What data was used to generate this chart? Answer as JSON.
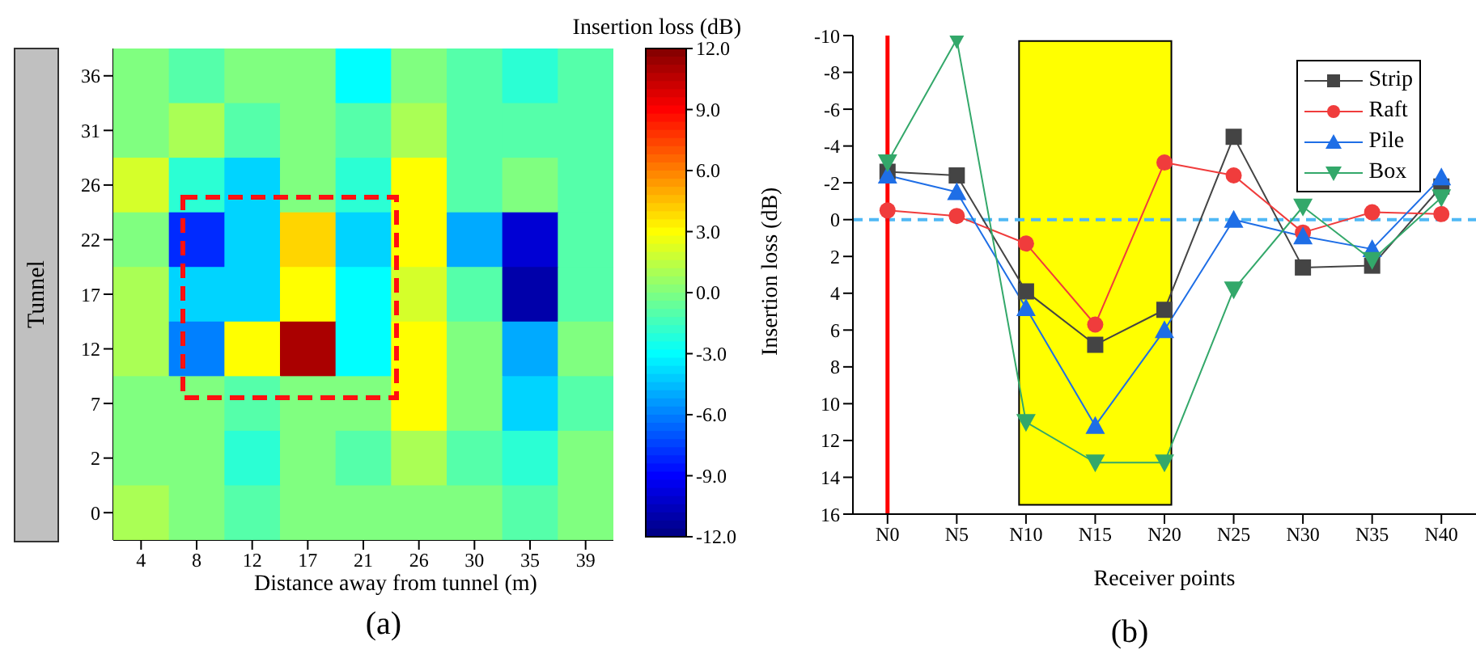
{
  "chart_data": [
    {
      "type": "heatmap",
      "xlabel": "Distance away from tunnel (m)",
      "clabel": "Insertion loss (dB)",
      "categories": [
        "4",
        "8",
        "12",
        "17",
        "21",
        "26",
        "30",
        "35",
        "39"
      ],
      "y_categories": [
        "36",
        "31",
        "26",
        "22",
        "17",
        "12",
        "7",
        "2",
        "0"
      ],
      "cells": [
        [
          0,
          -1,
          0,
          0,
          -3,
          0,
          -1,
          -2,
          -1
        ],
        [
          0,
          1,
          -1,
          0,
          -1,
          1,
          -1,
          -1,
          -1
        ],
        [
          2,
          -2,
          -4,
          0,
          -2,
          3,
          -1,
          0,
          -1
        ],
        [
          0,
          -8,
          -4,
          4,
          -4,
          3,
          -5,
          -10,
          -1
        ],
        [
          1,
          -4,
          -4,
          3,
          -3,
          2,
          -1,
          -11,
          -1
        ],
        [
          1,
          -6,
          3,
          11,
          -3,
          3,
          0,
          -5,
          0
        ],
        [
          0,
          0,
          -1,
          0,
          0,
          3,
          0,
          -4,
          -1
        ],
        [
          0,
          0,
          -2,
          0,
          -1,
          1,
          -1,
          -2,
          0
        ],
        [
          1,
          0,
          -1,
          0,
          0,
          0,
          0,
          -1,
          0
        ]
      ],
      "clim": [
        -12,
        12
      ],
      "cticks": [
        {
          "value": -12,
          "label": "-12.0"
        },
        {
          "value": -9,
          "label": "-9.0"
        },
        {
          "value": -6,
          "label": "-6.0"
        },
        {
          "value": -3,
          "label": "-3.0"
        },
        {
          "value": 0,
          "label": "0.0"
        },
        {
          "value": 3,
          "label": "3.0"
        },
        {
          "value": 6,
          "label": "6.0"
        },
        {
          "value": 9,
          "label": "9.0"
        },
        {
          "value": 12,
          "label": "12.0"
        }
      ],
      "annotations": [
        "Tunnel",
        "(a)"
      ]
    },
    {
      "type": "line",
      "xlabel": "Receiver points",
      "ylabel": "Insertion loss (dB)",
      "categories": [
        "N0",
        "N5",
        "N10",
        "N15",
        "N20",
        "N25",
        "N30",
        "N35",
        "N40"
      ],
      "series": [
        {
          "name": "Strip",
          "color": "#444444",
          "marker": "square",
          "values": [
            -2.6,
            -2.4,
            3.9,
            6.8,
            4.9,
            -4.5,
            2.6,
            2.5,
            -1.8
          ]
        },
        {
          "name": "Raft",
          "color": "#f03c3c",
          "marker": "circle",
          "values": [
            -0.5,
            -0.2,
            1.3,
            5.7,
            -3.1,
            -2.4,
            0.7,
            -0.4,
            -0.3
          ]
        },
        {
          "name": "Pile",
          "color": "#1e6ee6",
          "marker": "triangle",
          "values": [
            -2.4,
            -1.5,
            4.8,
            11.2,
            6.0,
            0.0,
            0.9,
            1.6,
            -2.3
          ]
        },
        {
          "name": "Box",
          "color": "#33a86a",
          "marker": "triangle-down",
          "values": [
            -3.1,
            -9.8,
            11.0,
            13.2,
            13.2,
            3.8,
            -0.7,
            2.2,
            -1.2
          ]
        }
      ],
      "ylim": [
        16,
        -10
      ],
      "yticks": [
        -10,
        -8,
        -6,
        -4,
        -2,
        0,
        2,
        4,
        6,
        8,
        10,
        12,
        14,
        16
      ],
      "legend": "top right",
      "ref_lines": [
        {
          "axis": "y",
          "value": 0,
          "color": "#4fb8f5",
          "line_style": "dashed"
        },
        {
          "axis": "x",
          "value": "N0",
          "color": "#ff0000",
          "line_style": "solid"
        }
      ],
      "bands": [
        {
          "axis": "x",
          "from": "N10",
          "to": "N20",
          "color": "#ffff00"
        }
      ],
      "annotations": [
        "(b)"
      ]
    }
  ]
}
